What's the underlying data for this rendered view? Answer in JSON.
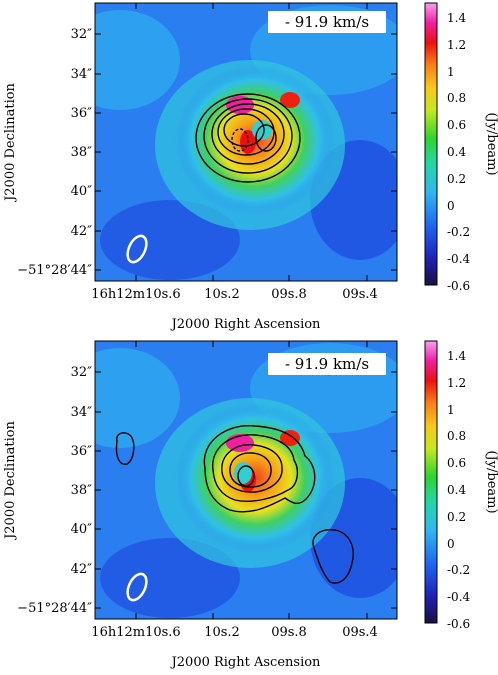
{
  "figure": {
    "panels": [
      {
        "velocity_label": "- 91.9 km/s",
        "colorbar_label": "(Jy/beam)",
        "colorbar_ticks": [
          "1.4",
          "1.2",
          "1",
          "0.8",
          "0.6",
          "0.4",
          "0.2",
          "0",
          "-0.2",
          "-0.4",
          "-0.6"
        ],
        "dec_ticks": [
          "32″",
          "34″",
          "36″",
          "38″",
          "40″",
          "42″",
          "−51°28′44″"
        ],
        "ra_ticks": [
          "16h12m10s.6",
          "10s.2",
          "09s.8",
          "09s.4"
        ],
        "ra_ticks_display": [
          {
            "a": "16",
            "b": "h",
            "c": "12",
            "d": "m",
            "e": "10",
            "f": "s",
            ".g": ".6"
          },
          {
            "a": "10",
            "f": "s",
            "g": ".2"
          },
          {
            "a": "09",
            "f": "s",
            "g": ".8"
          },
          {
            "a": "09",
            "f": "s",
            "g": ".4"
          }
        ],
        "xlabel": "J2000 Right Ascension",
        "ylabel": "J2000 Declination"
      },
      {
        "velocity_label": "- 91.9 km/s",
        "colorbar_label": "(Jy/beam)",
        "colorbar_ticks": [
          "1.4",
          "1.2",
          "1",
          "0.8",
          "0.6",
          "0.4",
          "0.2",
          "0",
          "-0.2",
          "-0.4",
          "-0.6"
        ],
        "dec_ticks": [
          "32″",
          "34″",
          "36″",
          "38″",
          "40″",
          "42″",
          "−51°28′44″"
        ],
        "ra_ticks": [
          "16h12m10s.6",
          "10s.2",
          "09s.8",
          "09s.4"
        ],
        "xlabel": "J2000 Right Ascension",
        "ylabel": "J2000 Declination"
      }
    ],
    "colormap": [
      "#1a1040",
      "#2020b0",
      "#1f5ff0",
      "#2fb8f0",
      "#22d6a8",
      "#2ed52e",
      "#c8e820",
      "#f8c818",
      "#f88018",
      "#ee1010",
      "#f020a0",
      "#f8a0f0"
    ],
    "colorbar_range": [
      -0.6,
      1.5
    ]
  }
}
